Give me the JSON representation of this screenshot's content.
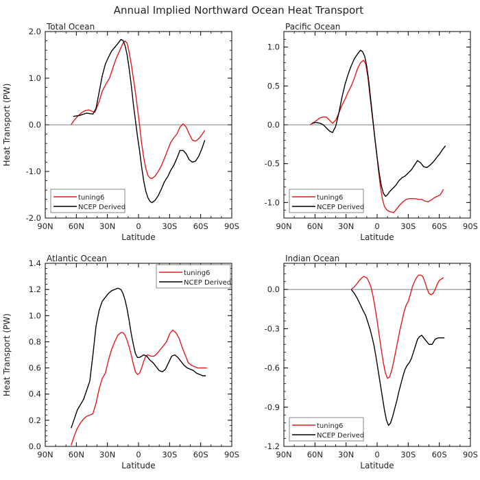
{
  "figure": {
    "title": "Annual Implied Northward Ocean Heat Transport"
  },
  "chart_data": [
    {
      "type": "line",
      "panel_title": "Total Ocean",
      "xlabel": "Latitude",
      "ylabel": "Heat Transport (PW)",
      "xlim": [
        -90,
        90
      ],
      "ylim": [
        -2.0,
        2.0
      ],
      "x_ticks": [
        -90,
        -60,
        -30,
        0,
        30,
        60,
        90
      ],
      "x_tick_labels": [
        "90N",
        "60N",
        "30N",
        "0",
        "30S",
        "60S",
        "90S"
      ],
      "y_ticks": [
        -2.0,
        -1.0,
        0.0,
        1.0,
        2.0
      ],
      "y_tick_labels": [
        "-2.0",
        "-1.0",
        "0.0",
        "1.0",
        "2.0"
      ],
      "zero_line": true,
      "grid": false,
      "legend_position": "bottom-left",
      "series": [
        {
          "name": "tuning6",
          "color": "#e31a1c",
          "x": [
            -65,
            -62,
            -58,
            -55,
            -52,
            -48,
            -45,
            -42,
            -38,
            -35,
            -32,
            -28,
            -25,
            -22,
            -18,
            -15,
            -13,
            -11,
            -9,
            -7,
            -5,
            -3,
            -1,
            1,
            3,
            5,
            7,
            9,
            11,
            13,
            16,
            19,
            22,
            25,
            28,
            31,
            34,
            37,
            40,
            43,
            46,
            49,
            52,
            55,
            58,
            61,
            64
          ],
          "y": [
            0.0,
            0.1,
            0.2,
            0.26,
            0.3,
            0.32,
            0.29,
            0.27,
            0.5,
            0.72,
            0.85,
            1.0,
            1.2,
            1.4,
            1.6,
            1.75,
            1.8,
            1.75,
            1.55,
            1.3,
            1.0,
            0.7,
            0.35,
            0.0,
            -0.4,
            -0.7,
            -0.93,
            -1.08,
            -1.14,
            -1.15,
            -1.1,
            -1.0,
            -0.88,
            -0.72,
            -0.55,
            -0.38,
            -0.28,
            -0.2,
            -0.05,
            0.02,
            -0.05,
            -0.2,
            -0.33,
            -0.35,
            -0.3,
            -0.22,
            -0.12
          ]
        },
        {
          "name": "NCEP Derived",
          "color": "#000000",
          "x": [
            -63,
            -60,
            -57,
            -53,
            -50,
            -47,
            -44,
            -41,
            -38,
            -35,
            -32,
            -29,
            -26,
            -23,
            -20,
            -17,
            -15,
            -13,
            -11,
            -9,
            -7,
            -5,
            -3,
            -1,
            1,
            3,
            5,
            7,
            9,
            11,
            13,
            16,
            19,
            22,
            25,
            28,
            31,
            34,
            37,
            40,
            43,
            46,
            49,
            52,
            55,
            58,
            61,
            64
          ],
          "y": [
            0.18,
            0.19,
            0.2,
            0.23,
            0.25,
            0.24,
            0.23,
            0.35,
            0.7,
            1.05,
            1.3,
            1.45,
            1.58,
            1.66,
            1.74,
            1.83,
            1.81,
            1.7,
            1.5,
            1.2,
            0.85,
            0.45,
            0.1,
            -0.25,
            -0.55,
            -0.9,
            -1.2,
            -1.42,
            -1.56,
            -1.64,
            -1.67,
            -1.62,
            -1.52,
            -1.38,
            -1.22,
            -1.12,
            -0.98,
            -0.87,
            -0.72,
            -0.55,
            -0.55,
            -0.62,
            -0.75,
            -0.8,
            -0.78,
            -0.68,
            -0.52,
            -0.33
          ]
        }
      ]
    },
    {
      "type": "line",
      "panel_title": "Pacific Ocean",
      "xlabel": "Latitude",
      "ylabel": "",
      "xlim": [
        -90,
        90
      ],
      "ylim": [
        -1.2,
        1.2
      ],
      "x_ticks": [
        -90,
        -60,
        -30,
        0,
        30,
        60,
        90
      ],
      "x_tick_labels": [
        "90N",
        "60N",
        "30N",
        "0",
        "30S",
        "60S",
        "90S"
      ],
      "y_ticks": [
        -1.0,
        -0.5,
        0.0,
        0.5,
        1.0
      ],
      "y_tick_labels": [
        "-1.0",
        "-0.5",
        "0.0",
        "0.5",
        "1.0"
      ],
      "zero_line": true,
      "grid": false,
      "legend_position": "bottom-left",
      "series": [
        {
          "name": "tuning6",
          "color": "#e31a1c",
          "x": [
            -65,
            -62,
            -58,
            -55,
            -52,
            -49,
            -46,
            -43,
            -40,
            -37,
            -34,
            -31,
            -28,
            -25,
            -22,
            -19,
            -16,
            -13,
            -11,
            -9,
            -7,
            -5,
            -3,
            -1,
            1,
            3,
            5,
            7,
            9,
            11,
            13,
            16,
            19,
            22,
            25,
            28,
            31,
            34,
            37,
            40,
            43,
            46,
            49,
            52,
            55,
            58,
            61,
            64
          ],
          "y": [
            0.0,
            0.02,
            0.06,
            0.09,
            0.1,
            0.1,
            0.06,
            0.02,
            0.06,
            0.15,
            0.25,
            0.33,
            0.42,
            0.5,
            0.6,
            0.72,
            0.8,
            0.83,
            0.78,
            0.62,
            0.38,
            0.15,
            -0.08,
            -0.3,
            -0.55,
            -0.78,
            -0.95,
            -1.05,
            -1.09,
            -1.11,
            -1.12,
            -1.13,
            -1.08,
            -1.03,
            -0.99,
            -0.96,
            -0.95,
            -0.95,
            -0.95,
            -0.96,
            -0.96,
            -0.98,
            -0.99,
            -0.97,
            -0.94,
            -0.92,
            -0.9,
            -0.83
          ]
        },
        {
          "name": "NCEP Derived",
          "color": "#000000",
          "x": [
            -63,
            -59,
            -55,
            -52,
            -49,
            -46,
            -43,
            -40,
            -37,
            -34,
            -31,
            -28,
            -25,
            -22,
            -19,
            -16,
            -14,
            -12,
            -10,
            -8,
            -6,
            -4,
            -2,
            0,
            2,
            4,
            6,
            8,
            10,
            12,
            15,
            18,
            21,
            24,
            27,
            30,
            33,
            36,
            39,
            42,
            45,
            48,
            51,
            54,
            57,
            60,
            63,
            66
          ],
          "y": [
            0.02,
            0.03,
            0.02,
            0.0,
            -0.04,
            -0.08,
            -0.1,
            -0.02,
            0.15,
            0.35,
            0.52,
            0.65,
            0.76,
            0.85,
            0.91,
            0.96,
            0.94,
            0.88,
            0.75,
            0.55,
            0.3,
            0.05,
            -0.2,
            -0.42,
            -0.62,
            -0.78,
            -0.88,
            -0.92,
            -0.9,
            -0.86,
            -0.82,
            -0.78,
            -0.72,
            -0.68,
            -0.66,
            -0.62,
            -0.58,
            -0.52,
            -0.46,
            -0.49,
            -0.54,
            -0.55,
            -0.52,
            -0.48,
            -0.43,
            -0.38,
            -0.32,
            -0.27
          ]
        }
      ]
    },
    {
      "type": "line",
      "panel_title": "Atlantic Ocean",
      "xlabel": "Latitude",
      "ylabel": "Heat Transport (PW)",
      "xlim": [
        -90,
        90
      ],
      "ylim": [
        0.0,
        1.4
      ],
      "x_ticks": [
        -90,
        -60,
        -30,
        0,
        30,
        60,
        90
      ],
      "x_tick_labels": [
        "90N",
        "60N",
        "30N",
        "0",
        "30S",
        "60S",
        "90S"
      ],
      "y_ticks": [
        0.0,
        0.2,
        0.4,
        0.6,
        0.8,
        1.0,
        1.2,
        1.4
      ],
      "y_tick_labels": [
        "0.0",
        "0.2",
        "0.4",
        "0.6",
        "0.8",
        "1.0",
        "1.2",
        "1.4"
      ],
      "zero_line": false,
      "grid": false,
      "legend_position": "top-right",
      "series": [
        {
          "name": "tuning6",
          "color": "#e31a1c",
          "x": [
            -65,
            -62,
            -59,
            -56,
            -53,
            -50,
            -47,
            -44,
            -41,
            -38,
            -35,
            -32,
            -29,
            -26,
            -23,
            -20,
            -17,
            -15,
            -13,
            -11,
            -9,
            -7,
            -5,
            -3,
            -1,
            1,
            3,
            5,
            7,
            9,
            12,
            15,
            18,
            21,
            24,
            27,
            30,
            33,
            36,
            39,
            42,
            45,
            48,
            51,
            54,
            57,
            60,
            63,
            66
          ],
          "y": [
            0.01,
            0.08,
            0.14,
            0.18,
            0.21,
            0.23,
            0.24,
            0.25,
            0.33,
            0.44,
            0.52,
            0.56,
            0.66,
            0.74,
            0.8,
            0.85,
            0.87,
            0.87,
            0.85,
            0.81,
            0.76,
            0.7,
            0.63,
            0.57,
            0.55,
            0.56,
            0.6,
            0.65,
            0.69,
            0.7,
            0.69,
            0.69,
            0.71,
            0.74,
            0.77,
            0.8,
            0.86,
            0.89,
            0.87,
            0.83,
            0.76,
            0.7,
            0.64,
            0.62,
            0.61,
            0.6,
            0.6,
            0.6,
            0.6
          ]
        },
        {
          "name": "NCEP Derived",
          "color": "#000000",
          "x": [
            -65,
            -62,
            -59,
            -56,
            -53,
            -50,
            -47,
            -44,
            -41,
            -38,
            -35,
            -32,
            -29,
            -26,
            -23,
            -20,
            -17,
            -15,
            -13,
            -11,
            -9,
            -7,
            -5,
            -3,
            -1,
            1,
            3,
            5,
            8,
            11,
            14,
            17,
            20,
            23,
            26,
            29,
            32,
            35,
            38,
            41,
            44,
            47,
            50,
            53,
            56,
            59,
            62,
            65
          ],
          "y": [
            0.14,
            0.21,
            0.28,
            0.32,
            0.36,
            0.43,
            0.5,
            0.7,
            0.92,
            1.04,
            1.11,
            1.14,
            1.17,
            1.19,
            1.2,
            1.21,
            1.2,
            1.17,
            1.12,
            1.05,
            0.96,
            0.86,
            0.78,
            0.71,
            0.68,
            0.68,
            0.69,
            0.7,
            0.69,
            0.66,
            0.64,
            0.61,
            0.58,
            0.57,
            0.59,
            0.64,
            0.69,
            0.7,
            0.68,
            0.65,
            0.62,
            0.6,
            0.59,
            0.58,
            0.56,
            0.55,
            0.54,
            0.54
          ]
        }
      ]
    },
    {
      "type": "line",
      "panel_title": "Indian Ocean",
      "xlabel": "Latitude",
      "ylabel": "",
      "xlim": [
        -90,
        90
      ],
      "ylim": [
        -1.2,
        0.2
      ],
      "x_ticks": [
        -90,
        -60,
        -30,
        0,
        30,
        60,
        90
      ],
      "x_tick_labels": [
        "90N",
        "60N",
        "30N",
        "0",
        "30S",
        "60S",
        "90S"
      ],
      "y_ticks": [
        -1.2,
        -0.9,
        -0.6,
        -0.3,
        0.0
      ],
      "y_tick_labels": [
        "-1.2",
        "-0.9",
        "-0.6",
        "-0.3",
        "0.0"
      ],
      "zero_line": true,
      "grid": false,
      "legend_position": "bottom-left",
      "series": [
        {
          "name": "tuning6",
          "color": "#e31a1c",
          "x": [
            -25,
            -22,
            -19,
            -16,
            -13,
            -10,
            -8,
            -6,
            -4,
            -2,
            0,
            2,
            4,
            6,
            8,
            10,
            12,
            14,
            16,
            18,
            20,
            22,
            24,
            26,
            28,
            30,
            32,
            34,
            36,
            38,
            40,
            42,
            44,
            46,
            48,
            50,
            52,
            54,
            56,
            58,
            60,
            62,
            64
          ],
          "y": [
            0.0,
            0.02,
            0.05,
            0.08,
            0.1,
            0.09,
            0.06,
            0.02,
            -0.05,
            -0.14,
            -0.24,
            -0.35,
            -0.46,
            -0.56,
            -0.64,
            -0.68,
            -0.67,
            -0.62,
            -0.55,
            -0.47,
            -0.39,
            -0.31,
            -0.24,
            -0.17,
            -0.12,
            -0.09,
            -0.04,
            0.02,
            0.06,
            0.09,
            0.11,
            0.11,
            0.1,
            0.06,
            0.01,
            -0.03,
            -0.04,
            -0.03,
            0.0,
            0.04,
            0.07,
            0.08,
            0.09
          ]
        },
        {
          "name": "NCEP Derived",
          "color": "#000000",
          "x": [
            -25,
            -22,
            -19,
            -16,
            -13,
            -11,
            -9,
            -7,
            -5,
            -3,
            -1,
            1,
            3,
            5,
            7,
            9,
            11,
            13,
            15,
            17,
            19,
            21,
            23,
            25,
            27,
            29,
            31,
            33,
            35,
            37,
            39,
            41,
            43,
            45,
            47,
            50,
            53,
            56,
            59,
            62,
            65
          ],
          "y": [
            0.0,
            -0.03,
            -0.07,
            -0.12,
            -0.17,
            -0.2,
            -0.25,
            -0.3,
            -0.36,
            -0.43,
            -0.52,
            -0.62,
            -0.72,
            -0.82,
            -0.92,
            -1.0,
            -1.04,
            -1.02,
            -0.97,
            -0.91,
            -0.85,
            -0.78,
            -0.72,
            -0.66,
            -0.61,
            -0.58,
            -0.56,
            -0.53,
            -0.48,
            -0.43,
            -0.38,
            -0.36,
            -0.35,
            -0.37,
            -0.39,
            -0.42,
            -0.42,
            -0.38,
            -0.37,
            -0.37,
            -0.37
          ]
        }
      ]
    }
  ]
}
